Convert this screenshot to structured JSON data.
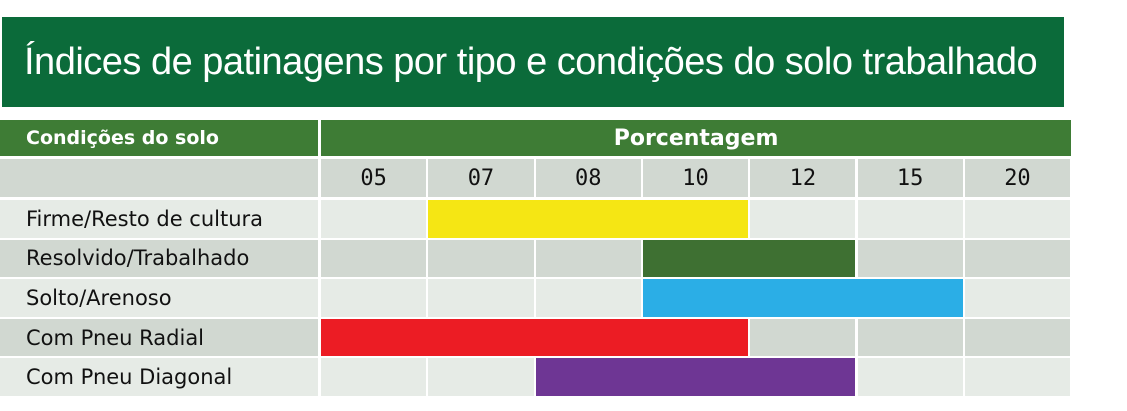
{
  "title": "Índices de patinagens por tipo e condições do solo trabalhado",
  "header": {
    "conditions_label": "Condições do solo",
    "percentage_label": "Porcentagem"
  },
  "colors": {
    "title_bg": "#0b6b3a",
    "header_bg": "#3e7c35",
    "cell_a": "#d1d8d1",
    "cell_b": "#e6ebe6"
  },
  "chart_data": {
    "type": "bar",
    "subtype": "range-table",
    "title": "Índices de patinagens por tipo e condições do solo trabalhado",
    "x_ticks": [
      "05",
      "07",
      "08",
      "10",
      "12",
      "15",
      "20"
    ],
    "xlabel": "Porcentagem",
    "ylabel": "Condições do solo",
    "categories": [
      "Firme/Resto de cultura",
      "Resolvido/Trabalhado",
      "Solto/Arenoso",
      "Com Pneu Radial",
      "Com Pneu Diagonal"
    ],
    "series": [
      {
        "category": "Firme/Resto de cultura",
        "start": "07",
        "end": "12",
        "color": "#f5e614"
      },
      {
        "category": "Resolvido/Trabalhado",
        "start": "10",
        "end": "15",
        "color": "#3e7032"
      },
      {
        "category": "Solto/Arenoso",
        "start": "10",
        "end": "20",
        "color": "#2baee6"
      },
      {
        "category": "Com Pneu Radial",
        "start": "05",
        "end": "12",
        "color": "#ec1c24"
      },
      {
        "category": "Com Pneu Diagonal",
        "start": "08",
        "end": "15",
        "color": "#6e3694"
      }
    ],
    "grid": true
  }
}
